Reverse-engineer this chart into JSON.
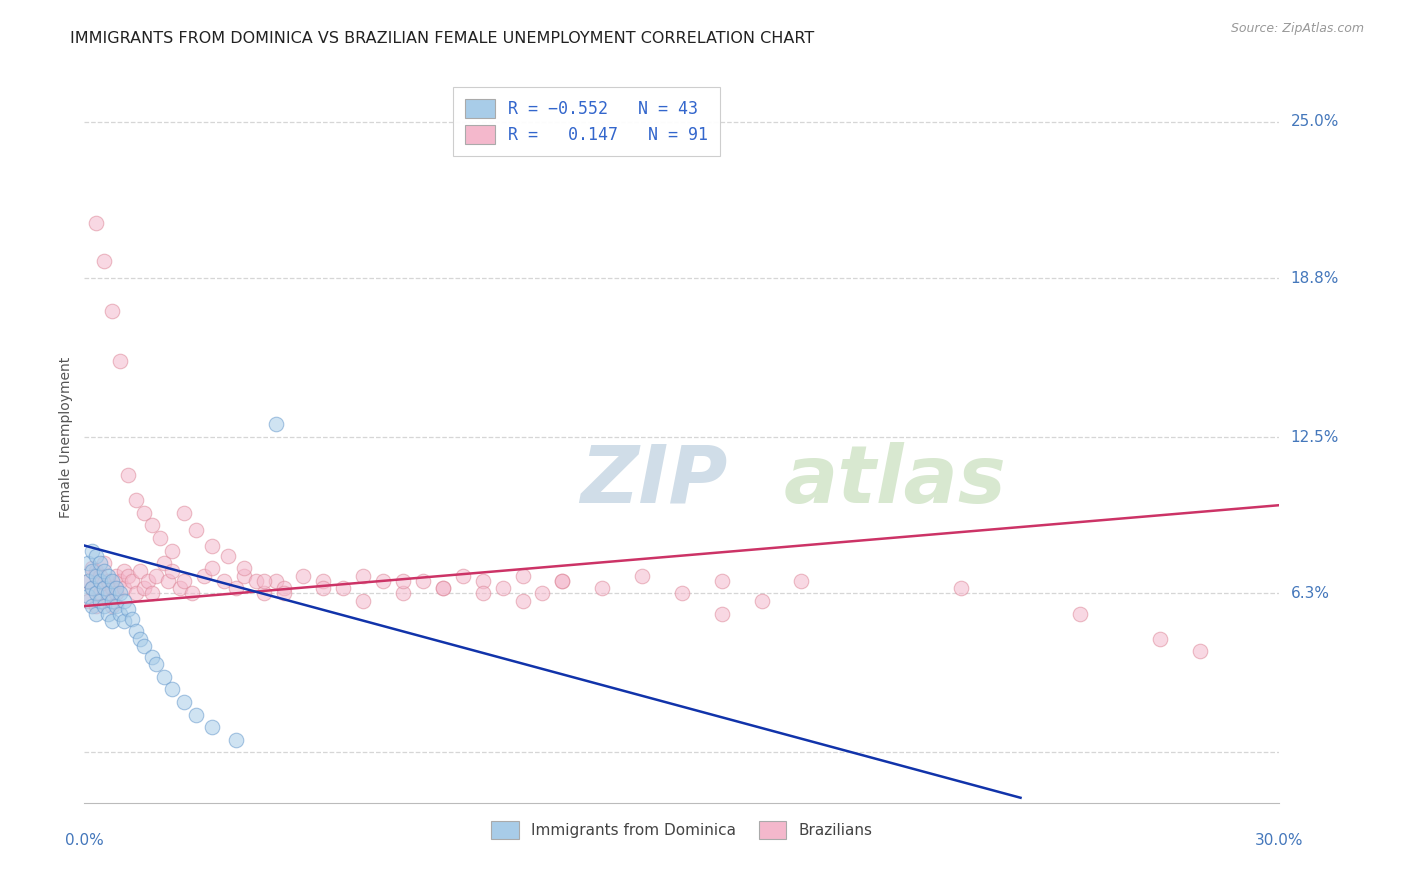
{
  "title": "IMMIGRANTS FROM DOMINICA VS BRAZILIAN FEMALE UNEMPLOYMENT CORRELATION CHART",
  "source": "Source: ZipAtlas.com",
  "ylabel": "Female Unemployment",
  "yticks": [
    0.0,
    0.063,
    0.125,
    0.188,
    0.25
  ],
  "ytick_labels": [
    "",
    "6.3%",
    "12.5%",
    "18.8%",
    "25.0%"
  ],
  "xmin": 0.0,
  "xmax": 0.3,
  "ymin": -0.02,
  "ymax": 0.27,
  "watermark_zip": "ZIP",
  "watermark_atlas": "atlas",
  "blue_scatter_x": [
    0.001,
    0.001,
    0.001,
    0.002,
    0.002,
    0.002,
    0.002,
    0.003,
    0.003,
    0.003,
    0.003,
    0.004,
    0.004,
    0.004,
    0.005,
    0.005,
    0.005,
    0.006,
    0.006,
    0.006,
    0.007,
    0.007,
    0.007,
    0.008,
    0.008,
    0.009,
    0.009,
    0.01,
    0.01,
    0.011,
    0.012,
    0.013,
    0.014,
    0.015,
    0.017,
    0.018,
    0.02,
    0.022,
    0.025,
    0.028,
    0.032,
    0.038,
    0.048
  ],
  "blue_scatter_y": [
    0.075,
    0.068,
    0.062,
    0.08,
    0.072,
    0.065,
    0.058,
    0.078,
    0.07,
    0.063,
    0.055,
    0.075,
    0.068,
    0.06,
    0.072,
    0.065,
    0.058,
    0.07,
    0.063,
    0.055,
    0.068,
    0.06,
    0.052,
    0.065,
    0.058,
    0.063,
    0.055,
    0.06,
    0.052,
    0.057,
    0.053,
    0.048,
    0.045,
    0.042,
    0.038,
    0.035,
    0.03,
    0.025,
    0.02,
    0.015,
    0.01,
    0.005,
    0.13
  ],
  "pink_scatter_x": [
    0.001,
    0.001,
    0.002,
    0.002,
    0.003,
    0.003,
    0.004,
    0.004,
    0.005,
    0.005,
    0.006,
    0.006,
    0.007,
    0.007,
    0.008,
    0.008,
    0.009,
    0.01,
    0.01,
    0.011,
    0.012,
    0.013,
    0.014,
    0.015,
    0.016,
    0.017,
    0.018,
    0.02,
    0.021,
    0.022,
    0.024,
    0.025,
    0.027,
    0.03,
    0.032,
    0.035,
    0.038,
    0.04,
    0.043,
    0.045,
    0.048,
    0.05,
    0.055,
    0.06,
    0.065,
    0.07,
    0.075,
    0.08,
    0.085,
    0.09,
    0.095,
    0.1,
    0.105,
    0.11,
    0.115,
    0.12,
    0.13,
    0.14,
    0.15,
    0.16,
    0.003,
    0.005,
    0.007,
    0.009,
    0.011,
    0.013,
    0.015,
    0.017,
    0.019,
    0.022,
    0.025,
    0.028,
    0.032,
    0.036,
    0.04,
    0.045,
    0.05,
    0.06,
    0.07,
    0.08,
    0.09,
    0.1,
    0.11,
    0.12,
    0.16,
    0.17,
    0.18,
    0.22,
    0.25,
    0.27,
    0.28
  ],
  "pink_scatter_y": [
    0.068,
    0.06,
    0.073,
    0.065,
    0.072,
    0.058,
    0.07,
    0.063,
    0.075,
    0.067,
    0.068,
    0.062,
    0.065,
    0.058,
    0.07,
    0.063,
    0.068,
    0.072,
    0.065,
    0.07,
    0.068,
    0.063,
    0.072,
    0.065,
    0.068,
    0.063,
    0.07,
    0.075,
    0.068,
    0.072,
    0.065,
    0.068,
    0.063,
    0.07,
    0.073,
    0.068,
    0.065,
    0.07,
    0.068,
    0.063,
    0.068,
    0.065,
    0.07,
    0.068,
    0.065,
    0.07,
    0.068,
    0.063,
    0.068,
    0.065,
    0.07,
    0.068,
    0.065,
    0.07,
    0.063,
    0.068,
    0.065,
    0.07,
    0.063,
    0.068,
    0.21,
    0.195,
    0.175,
    0.155,
    0.11,
    0.1,
    0.095,
    0.09,
    0.085,
    0.08,
    0.095,
    0.088,
    0.082,
    0.078,
    0.073,
    0.068,
    0.063,
    0.065,
    0.06,
    0.068,
    0.065,
    0.063,
    0.06,
    0.068,
    0.055,
    0.06,
    0.068,
    0.065,
    0.055,
    0.045,
    0.04
  ],
  "blue_line_x": [
    0.0,
    0.235
  ],
  "blue_line_y": [
    0.082,
    -0.018
  ],
  "pink_line_x": [
    0.0,
    0.3
  ],
  "pink_line_y": [
    0.058,
    0.098
  ],
  "dot_alpha": 0.55,
  "dot_size": 110,
  "blue_color": "#a8cce8",
  "blue_edge_color": "#6699cc",
  "pink_color": "#f4b8cc",
  "pink_edge_color": "#dd8899",
  "blue_line_color": "#1133aa",
  "pink_line_color": "#cc3366",
  "grid_color": "#bbbbbb",
  "grid_style": "--",
  "grid_alpha": 0.6,
  "title_fontsize": 11.5,
  "axis_label_fontsize": 10,
  "tick_fontsize": 11,
  "right_tick_color": "#4477bb",
  "bottom_label_color": "#4477bb"
}
